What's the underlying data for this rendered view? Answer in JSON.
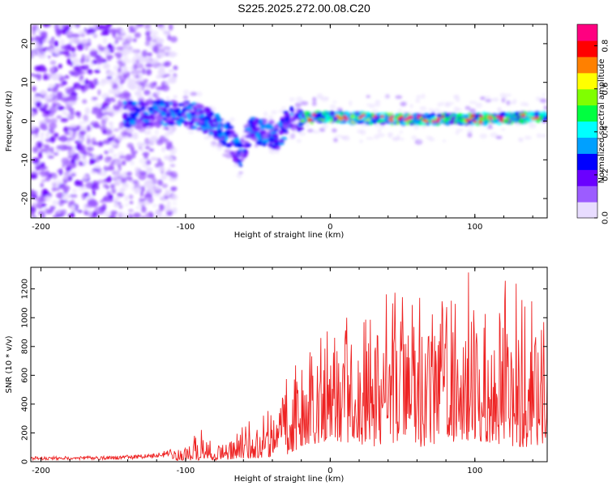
{
  "title": "S225.2025.272.00.08.C20",
  "chart_data": [
    {
      "type": "heatmap",
      "xlabel": "Height of straight line (km)",
      "ylabel": "Frequency (Hz)",
      "xlim": [
        -207,
        150
      ],
      "ylim": [
        -25,
        25
      ],
      "xticks": [
        -200,
        -100,
        0,
        100
      ],
      "yticks": [
        -20,
        -10,
        0,
        10,
        20
      ],
      "colorbar": {
        "label": "Normalized spectral amplitude",
        "range": [
          0,
          0.9
        ],
        "ticks": [
          "0.0",
          "0.2",
          "0.4",
          "0.6",
          "0.8"
        ],
        "colormap": [
          "#e8dcff",
          "#9c5cff",
          "#6a00ff",
          "#0000ff",
          "#00a0ff",
          "#00ffff",
          "#00ff40",
          "#80ff00",
          "#ffff00",
          "#ff8000",
          "#ff0000",
          "#ff0080"
        ]
      },
      "ridge": [
        {
          "x": -140,
          "y": 2
        },
        {
          "x": -120,
          "y": 2
        },
        {
          "x": -100,
          "y": 2
        },
        {
          "x": -90,
          "y": 1
        },
        {
          "x": -80,
          "y": -1
        },
        {
          "x": -70,
          "y": -4
        },
        {
          "x": -62,
          "y": -9
        },
        {
          "x": -55,
          "y": -2
        },
        {
          "x": -45,
          "y": -3
        },
        {
          "x": -35,
          "y": -4
        },
        {
          "x": -30,
          "y": 0
        },
        {
          "x": -20,
          "y": 1
        },
        {
          "x": 0,
          "y": 1
        },
        {
          "x": 50,
          "y": 0.5
        },
        {
          "x": 100,
          "y": 0.5
        },
        {
          "x": 150,
          "y": 1
        }
      ]
    },
    {
      "type": "line",
      "xlabel": "Height of straight line (km)",
      "ylabel": "SNR (10 * v/v)",
      "xlim": [
        -207,
        150
      ],
      "ylim": [
        0,
        1350
      ],
      "xticks": [
        -200,
        -100,
        0,
        100
      ],
      "yticks": [
        0,
        200,
        400,
        600,
        800,
        1000,
        1200
      ],
      "color": "#ee2222",
      "envelope": [
        {
          "x": -207,
          "low": 0,
          "high": 35
        },
        {
          "x": -150,
          "low": 0,
          "high": 40
        },
        {
          "x": -120,
          "low": 5,
          "high": 60
        },
        {
          "x": -100,
          "low": 10,
          "high": 120
        },
        {
          "x": -90,
          "low": 10,
          "high": 250
        },
        {
          "x": -80,
          "low": 10,
          "high": 100
        },
        {
          "x": -60,
          "low": 20,
          "high": 250
        },
        {
          "x": -45,
          "low": 30,
          "high": 400
        },
        {
          "x": -30,
          "low": 50,
          "high": 650
        },
        {
          "x": -20,
          "low": 100,
          "high": 700
        },
        {
          "x": 0,
          "low": 150,
          "high": 1050
        },
        {
          "x": 30,
          "low": 100,
          "high": 1150
        },
        {
          "x": 60,
          "low": 100,
          "high": 1250
        },
        {
          "x": 100,
          "low": 150,
          "high": 1350
        },
        {
          "x": 130,
          "low": 100,
          "high": 1250
        },
        {
          "x": 150,
          "low": 100,
          "high": 1100
        }
      ]
    }
  ]
}
